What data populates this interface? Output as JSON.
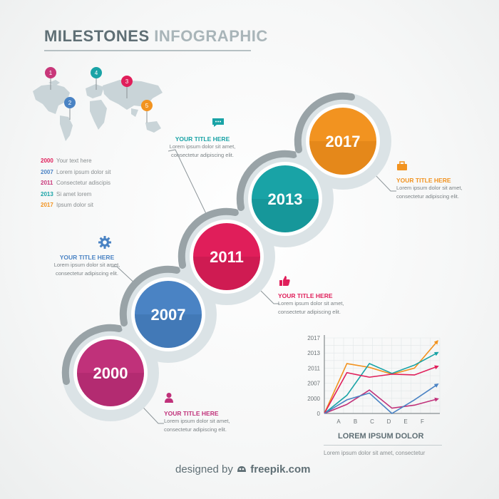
{
  "title": {
    "part1": "MILESTONES",
    "part2": "INFOGRAPHIC"
  },
  "map_pins": [
    {
      "label": "1",
      "color": "#c8377a"
    },
    {
      "label": "2",
      "color": "#4a83c4"
    },
    {
      "label": "3",
      "color": "#e01e5a"
    },
    {
      "label": "4",
      "color": "#19a3a6"
    },
    {
      "label": "5",
      "color": "#f29320"
    }
  ],
  "legend": [
    {
      "year": "2000",
      "text": "Your text here",
      "color": "#e01e5a"
    },
    {
      "year": "2007",
      "text": "Lorem ipsum dolor sit",
      "color": "#4a83c4"
    },
    {
      "year": "2011",
      "text": "Consectetur adiscipis",
      "color": "#c8377a"
    },
    {
      "year": "2013",
      "text": "Si amet lorem",
      "color": "#19a3a6"
    },
    {
      "year": "2017",
      "text": "Ipsum dolor sit",
      "color": "#f29320"
    }
  ],
  "milestones": [
    {
      "year": "2000",
      "color": "#c0317a",
      "dark": "#9a2362"
    },
    {
      "year": "2007",
      "color": "#4a83c4",
      "dark": "#3566a0"
    },
    {
      "year": "2011",
      "color": "#e01e5a",
      "dark": "#b01646"
    },
    {
      "year": "2013",
      "color": "#19a3a6",
      "dark": "#128285"
    },
    {
      "year": "2017",
      "color": "#f29320",
      "dark": "#cf7612"
    }
  ],
  "annotations": [
    {
      "id": "chat",
      "icon": "chat-bubble-icon",
      "title": "YOUR TITLE HERE",
      "line1": "Lorem ipsum dolor sit amet,",
      "line2": "consectetur adipiscing elit.",
      "color": "#19a3a6"
    },
    {
      "id": "briefcase",
      "icon": "briefcase-icon",
      "title": "YOUR TITLE HERE",
      "line1": "Lorem ipsum dolor sit amet,",
      "line2": "consectetur adipiscing elit.",
      "color": "#f29320"
    },
    {
      "id": "gear",
      "icon": "gear-icon",
      "title": "YOUR TITLE HERE",
      "line1": "Lorem ipsum dolor sit amet,",
      "line2": "consectetur adipiscing elit.",
      "color": "#4a83c4"
    },
    {
      "id": "thumb",
      "icon": "thumbs-up-icon",
      "title": "YOUR TITLE HERE",
      "line1": "Lorem ipsum dolor sit amet,",
      "line2": "consectetur adipiscing elit.",
      "color": "#e01e5a"
    },
    {
      "id": "person",
      "icon": "person-icon",
      "title": "YOUR TITLE HERE",
      "line1": "Lorem ipsum dolor sit amet,",
      "line2": "consectetur adipiscing elit.",
      "color": "#c0317a"
    }
  ],
  "chart_data": {
    "type": "line",
    "categories": [
      "A",
      "B",
      "C",
      "D",
      "E",
      "F"
    ],
    "y_ticks": [
      "0",
      "2000",
      "2007",
      "2011",
      "2013",
      "2017"
    ],
    "ylim": [
      0,
      5
    ],
    "grid": true,
    "series": [
      {
        "color": "#f29320",
        "values": [
          0,
          3.3,
          3.05,
          2.6,
          3.0,
          4.75
        ]
      },
      {
        "color": "#19a3a6",
        "values": [
          0,
          1.2,
          3.3,
          2.65,
          3.2,
          4.0
        ]
      },
      {
        "color": "#e01e5a",
        "values": [
          0,
          2.7,
          2.4,
          2.6,
          2.55,
          3.1
        ]
      },
      {
        "color": "#c0317a",
        "values": [
          0,
          0.6,
          1.55,
          0.35,
          0.55,
          0.95
        ]
      },
      {
        "color": "#4a83c4",
        "values": [
          0,
          0.9,
          1.35,
          0,
          0.9,
          1.9
        ]
      }
    ],
    "title": "LOREM IPSUM DOLOR",
    "caption": "Lorem ipsum dolor sit amet, consectetur"
  },
  "footer": {
    "prefix": "designed by",
    "brand": "freepik.com"
  }
}
